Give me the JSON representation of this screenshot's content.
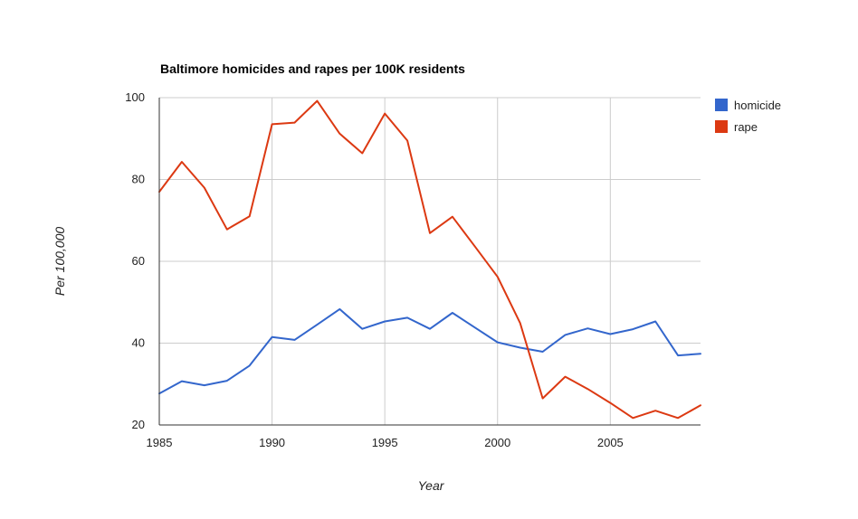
{
  "chart_data": {
    "type": "line",
    "title": "Baltimore homicides and rapes per 100K residents",
    "xlabel": "Year",
    "ylabel": "Per 100,000",
    "xlim": [
      1985,
      2009
    ],
    "ylim": [
      20,
      100
    ],
    "xticks": [
      1985,
      1990,
      1995,
      2000,
      2005
    ],
    "yticks": [
      20,
      40,
      60,
      80,
      100
    ],
    "x_tick_labels": [
      "1985",
      "1990",
      "1995",
      "2000",
      "2005"
    ],
    "y_tick_labels": [
      "20",
      "40",
      "60",
      "80",
      "100"
    ],
    "grid": true,
    "legend_position": "right",
    "x": [
      1985,
      1986,
      1987,
      1988,
      1989,
      1990,
      1991,
      1992,
      1993,
      1994,
      1995,
      1996,
      1997,
      1998,
      1999,
      2000,
      2001,
      2002,
      2003,
      2004,
      2005,
      2006,
      2007,
      2008,
      2009
    ],
    "series": [
      {
        "name": "homicide",
        "color": "#3366cc",
        "values": [
          27.7,
          30.7,
          29.7,
          30.8,
          34.5,
          41.5,
          40.8,
          44.5,
          48.3,
          43.5,
          45.3,
          46.2,
          43.5,
          47.4,
          43.8,
          40.2,
          38.9,
          37.9,
          42.0,
          43.6,
          42.2,
          43.4,
          45.3,
          37.0,
          37.4
        ]
      },
      {
        "name": "rape",
        "color": "#dc3912",
        "values": [
          77.0,
          84.3,
          78.0,
          67.8,
          71.0,
          93.5,
          93.9,
          99.2,
          91.2,
          86.4,
          96.1,
          89.5,
          66.9,
          70.9,
          63.6,
          56.2,
          44.9,
          26.5,
          31.8,
          28.8,
          25.4,
          21.7,
          23.5,
          21.7,
          24.8
        ]
      }
    ]
  }
}
